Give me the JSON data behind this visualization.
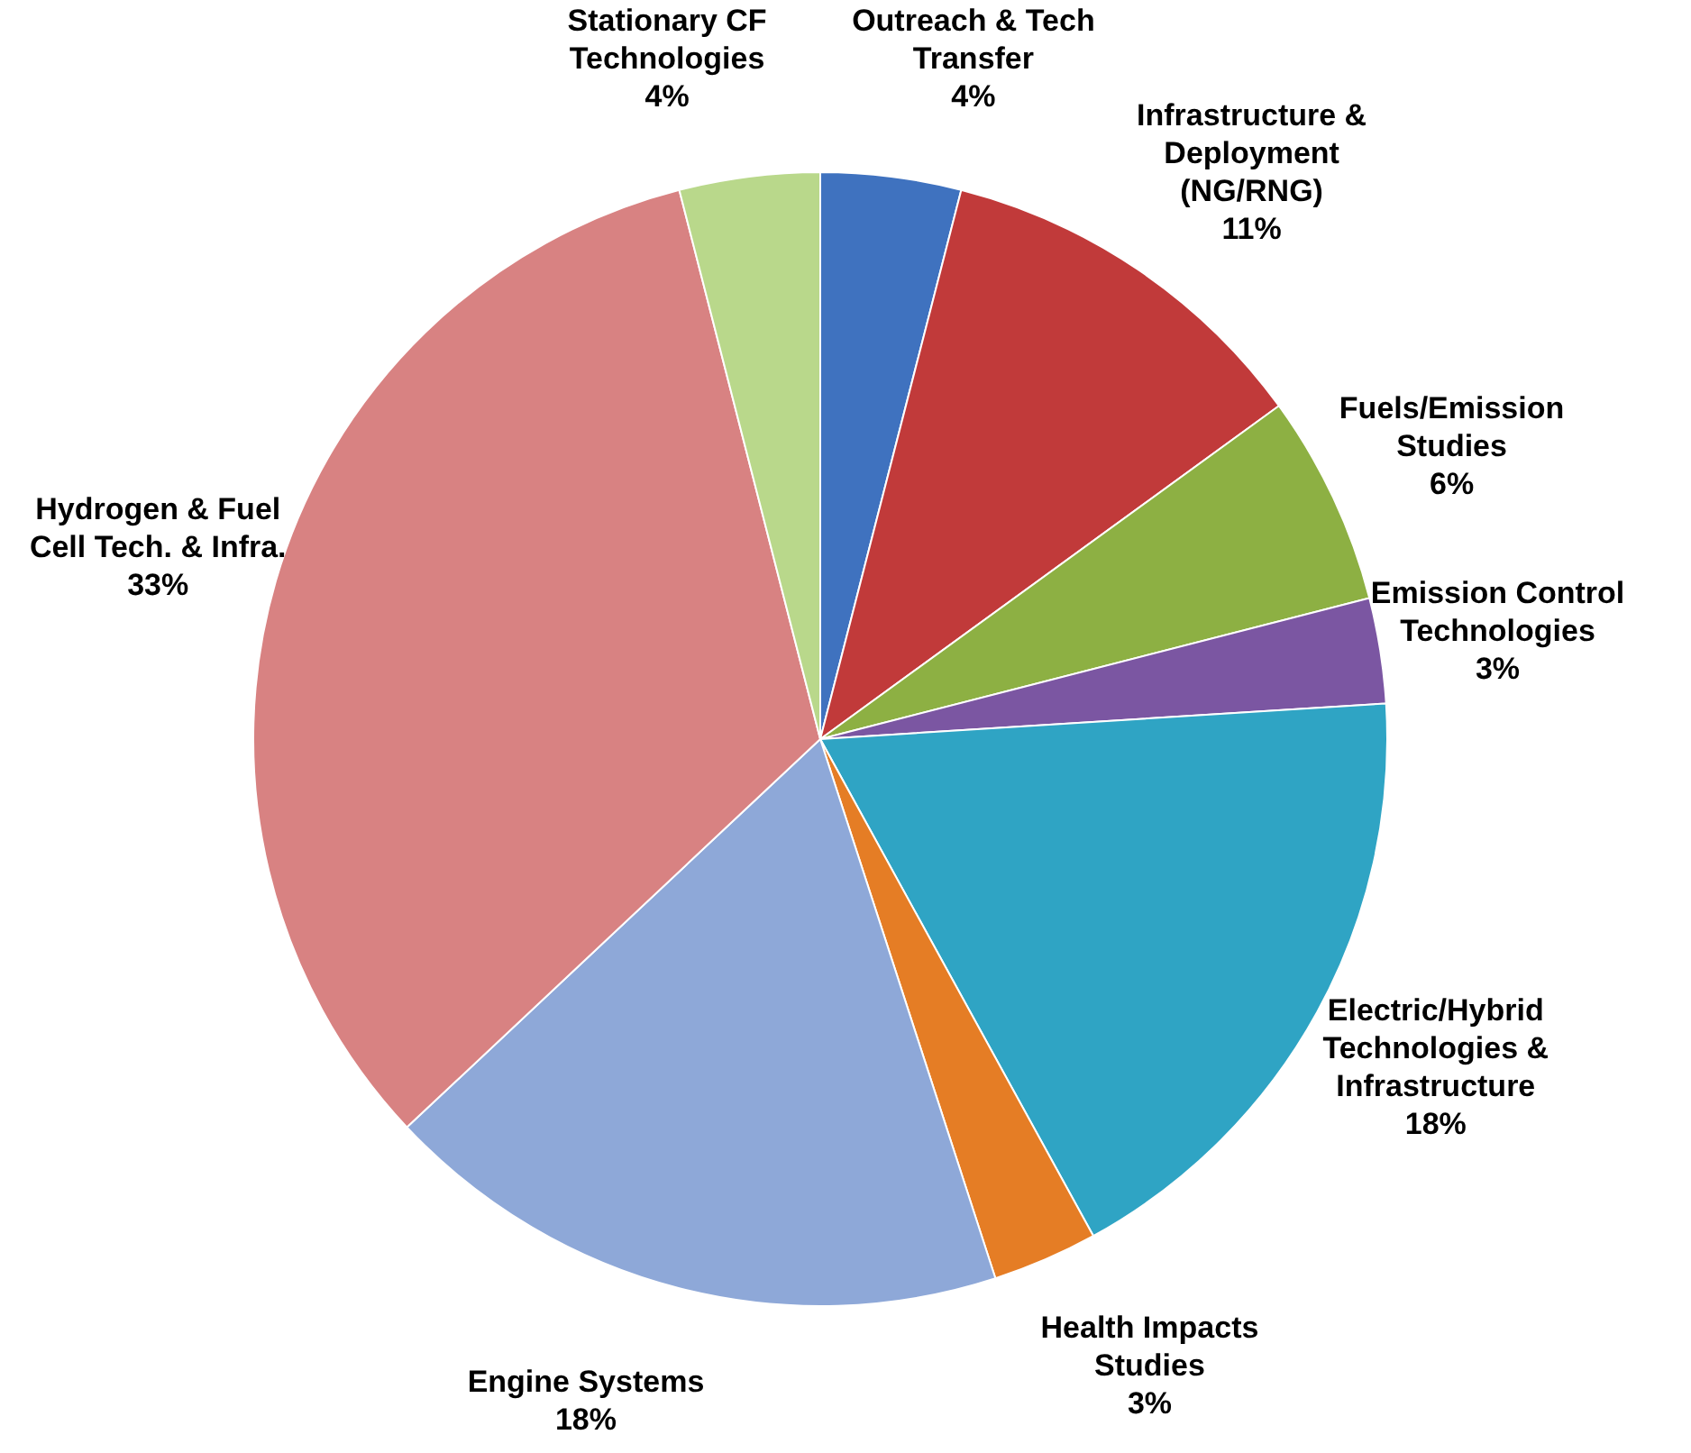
{
  "chart_data": {
    "type": "pie",
    "categories": [
      "Outreach & Tech Transfer",
      "Infrastructure & Deployment (NG/RNG)",
      "Fuels/Emission Studies",
      "Emission Control Technologies",
      "Electric/Hybrid Technologies & Infrastructure",
      "Health Impacts Studies",
      "Engine Systems",
      "Hydrogen & Fuel Cell Tech. & Infra.",
      "Stationary CF Technologies"
    ],
    "values": [
      4,
      11,
      6,
      3,
      18,
      3,
      18,
      33,
      4
    ],
    "value_labels": [
      "4%",
      "11%",
      "6%",
      "3%",
      "18%",
      "3%",
      "18%",
      "33%",
      "4%"
    ],
    "colors": [
      "#3f72bf",
      "#c13a3a",
      "#8db043",
      "#7b56a2",
      "#2fa4c4",
      "#e57d25",
      "#8ea8d8",
      "#d88282",
      "#b9d88b"
    ],
    "legend": false
  }
}
